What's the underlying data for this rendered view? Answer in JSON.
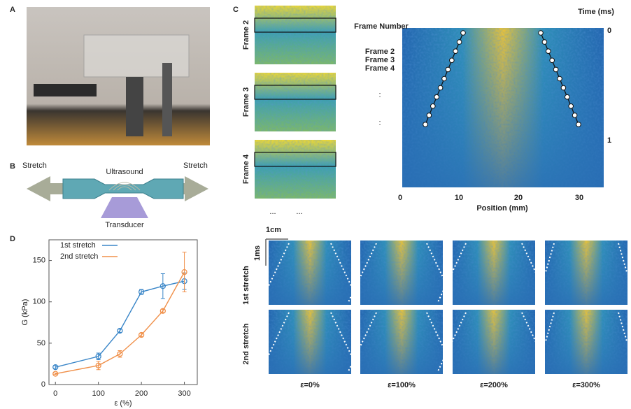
{
  "panel_labels": [
    "A",
    "B",
    "C",
    "D"
  ],
  "panel_b": {
    "stretch_left": "Stretch",
    "stretch_right": "Stretch",
    "ultrasound": "Ultrasound",
    "transducer": "Transducer"
  },
  "panel_c": {
    "frame_labels": [
      "Frame 2",
      "Frame 3",
      "Frame 4"
    ],
    "ellipsis": [
      "...",
      "..."
    ],
    "frame_number_title": "Frame Number",
    "legend": [
      "Frame 2",
      "Frame 3",
      "Frame 4"
    ],
    "vertical_ellipsis": [
      ":",
      ":"
    ],
    "time_label": "Time (ms)",
    "time_ticks": [
      "0",
      "1"
    ],
    "position_ticks": [
      "0",
      "10",
      "20",
      "30"
    ],
    "position_label": "Position (mm)"
  },
  "panel_c_lower": {
    "scale_bar": "1cm",
    "rows": [
      "1st stretch",
      "2nd stretch"
    ],
    "time_scale": "1ms",
    "columns": [
      "ε=0%",
      "ε=100%",
      "ε=200%",
      "ε=300%"
    ]
  },
  "chart_data": {
    "type": "line",
    "x_label": "ε (%)",
    "y_label": "G (kPa)",
    "x": [
      0,
      100,
      150,
      200,
      250,
      300
    ],
    "series": [
      {
        "name": "1st stretch",
        "color": "#3a86c8",
        "values": [
          21,
          34,
          65,
          112,
          119,
          125
        ],
        "errors": [
          2,
          4,
          2,
          3,
          15,
          10
        ]
      },
      {
        "name": "2nd stretch",
        "color": "#f0904a",
        "values": [
          13,
          23,
          37,
          60,
          89,
          136
        ],
        "errors": [
          1,
          5,
          4,
          2,
          2,
          24
        ]
      }
    ],
    "xlim": [
      -15,
      330
    ],
    "ylim": [
      0,
      175
    ],
    "xticks": [
      0,
      100,
      200,
      300
    ],
    "yticks": [
      0,
      50,
      100,
      150
    ],
    "grid": false
  }
}
